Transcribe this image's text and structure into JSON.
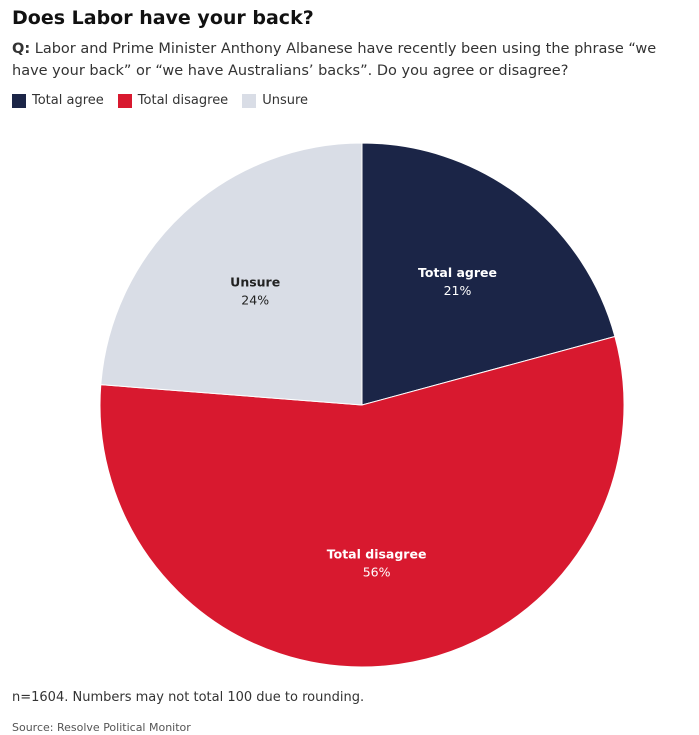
{
  "header": {
    "title": "Does Labor have your back?",
    "question_prefix": "Q:",
    "question_text": "Labor and Prime Minister Anthony Albanese have recently been using the phrase “we have your back” or “we have Australians’ backs”. Do you agree or disagree?"
  },
  "footer": {
    "note": "n=1604. Numbers may not total 100 due to rounding.",
    "source": "Source: Resolve Political Monitor"
  },
  "chart_data": {
    "type": "pie",
    "title": "Does Labor have your back?",
    "legend_position": "top-left",
    "slices": [
      {
        "label": "Total agree",
        "value": 21,
        "display": "21%",
        "color": "#1b2547",
        "label_color": "#ffffff"
      },
      {
        "label": "Total disagree",
        "value": 56,
        "display": "56%",
        "color": "#d8192f",
        "label_color": "#ffffff"
      },
      {
        "label": "Unsure",
        "value": 24,
        "display": "24%",
        "color": "#d9dde6",
        "label_color": "#222222"
      }
    ]
  }
}
